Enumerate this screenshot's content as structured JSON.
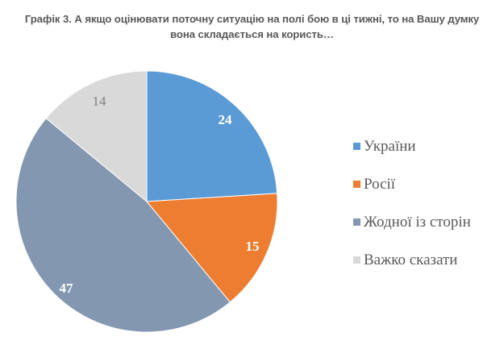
{
  "title": {
    "line1": "Графік 3. А якщо оцінювати поточну ситуацію на полі бою в ці тижні, то на Вашу думку",
    "line2": "вона складається на користь…"
  },
  "legend": {
    "items": [
      {
        "label": "України",
        "color": "#5b9bd5"
      },
      {
        "label": "Росії",
        "color": "#ed7d31"
      },
      {
        "label": "Жодної із сторін",
        "color": "#8497b0"
      },
      {
        "label": "Важко сказати",
        "color": "#d9d9d9"
      }
    ]
  },
  "labels": {
    "ukraine": "24",
    "russia": "15",
    "neither": "47",
    "hard_to_say": "14"
  },
  "chart_data": {
    "type": "pie",
    "title": "Графік 3. А якщо оцінювати поточну ситуацію на полі бою в ці тижні, то на Вашу думку вона складається на користь…",
    "categories": [
      "України",
      "Росії",
      "Жодної із сторін",
      "Важко сказати"
    ],
    "values": [
      24,
      15,
      47,
      14
    ],
    "colors": [
      "#5b9bd5",
      "#ed7d31",
      "#8497b0",
      "#d9d9d9"
    ],
    "start_angle": "12 o'clock, clockwise",
    "data_labels": true,
    "legend_position": "right"
  }
}
